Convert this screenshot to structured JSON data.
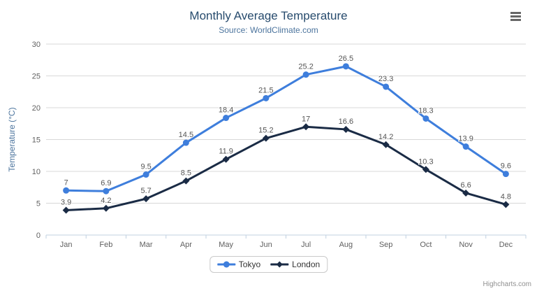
{
  "credit": "Highcharts.com",
  "colors": {
    "title": "#274b6d",
    "subtitle": "#4d759e",
    "axis_title": "#4d759e",
    "tick_label": "#606060",
    "grid_line": "#d8d8d8",
    "axis_line": "#c0d0e0",
    "data_label": "#555555",
    "legend_text": "#333333",
    "menu_icon": "#666666",
    "credit_text": "#909090"
  },
  "chart_data": {
    "type": "line",
    "title": "Monthly Average Temperature",
    "subtitle": "Source: WorldClimate.com",
    "categories": [
      "Jan",
      "Feb",
      "Mar",
      "Apr",
      "May",
      "Jun",
      "Jul",
      "Aug",
      "Sep",
      "Oct",
      "Nov",
      "Dec"
    ],
    "series": [
      {
        "name": "Tokyo",
        "color": "#3e7edc",
        "marker": "circle",
        "values": [
          7,
          6.9,
          9.5,
          14.5,
          18.4,
          21.5,
          25.2,
          26.5,
          23.3,
          18.3,
          13.9,
          9.6
        ]
      },
      {
        "name": "London",
        "color": "#1a2b45",
        "marker": "diamond",
        "values": [
          3.9,
          4.2,
          5.7,
          8.5,
          11.9,
          15.2,
          17,
          16.6,
          14.2,
          10.3,
          6.6,
          4.8
        ]
      }
    ],
    "xlabel": "",
    "ylabel": "Temperature (°C)",
    "ylim": [
      0,
      30
    ],
    "ytick_step": 5,
    "grid": true,
    "legend_position": "bottom",
    "data_labels": true
  }
}
